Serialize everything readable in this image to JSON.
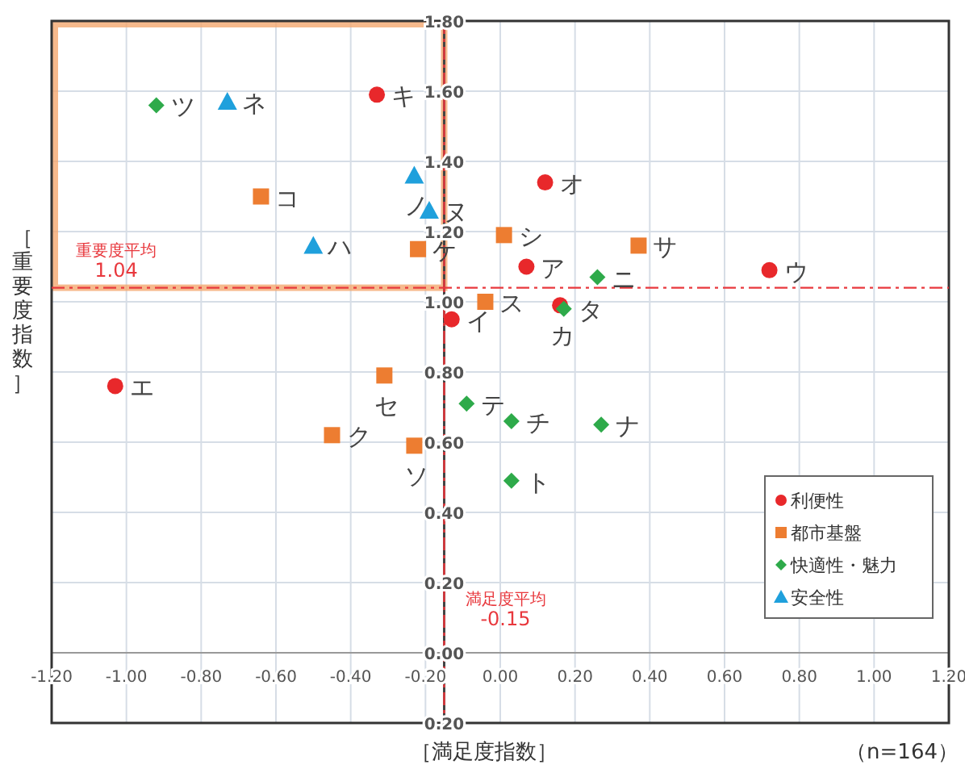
{
  "chart_data": {
    "type": "scatter",
    "xlabel": "［満足度指数］",
    "ylabel": "［重要度指数］",
    "annotations": [
      "（n=164）"
    ],
    "xlim": [
      -1.2,
      1.2
    ],
    "ylim": [
      -0.2,
      1.8
    ],
    "xticks": [
      {
        "value": -1.2,
        "label": "-1.20"
      },
      {
        "value": -1.0,
        "label": "-1.00"
      },
      {
        "value": -0.8,
        "label": "-0.80"
      },
      {
        "value": -0.6,
        "label": "-0.60"
      },
      {
        "value": -0.4,
        "label": "-0.40"
      },
      {
        "value": -0.2,
        "label": "-0.20"
      },
      {
        "value": 0,
        "label": "0.00"
      },
      {
        "value": 0.2,
        "label": "0.20"
      },
      {
        "value": 0.4,
        "label": "0.40"
      },
      {
        "value": 0.6,
        "label": "0.60"
      },
      {
        "value": 0.8,
        "label": "0.80"
      },
      {
        "value": 1.0,
        "label": "1.00"
      },
      {
        "value": 1.2,
        "label": "1.20"
      }
    ],
    "yticks": [
      {
        "value": -0.2,
        "label": "0.20"
      },
      {
        "value": 0,
        "label": "0.00"
      },
      {
        "value": 0.2,
        "label": "0.20"
      },
      {
        "value": 0.4,
        "label": "0.40"
      },
      {
        "value": 0.6,
        "label": "0.60"
      },
      {
        "value": 0.8,
        "label": "0.80"
      },
      {
        "value": 1.0,
        "label": "1.00"
      },
      {
        "value": 1.2,
        "label": "1.20"
      },
      {
        "value": 1.4,
        "label": "1.40"
      },
      {
        "value": 1.6,
        "label": "1.60"
      },
      {
        "value": 1.8,
        "label": "1.80"
      }
    ],
    "grid": true,
    "legend": "bottom right",
    "ref_lines": [
      {
        "axis": "y",
        "value": 1.04,
        "label": "重要度平均 1.04",
        "color": "#e8383d",
        "line_style": "dashed"
      },
      {
        "axis": "x",
        "value": -0.15,
        "label": "満足度平均 -0.15",
        "color": "#e8383d",
        "line_style": "dashed"
      }
    ],
    "series": [
      {
        "name": "利便性",
        "color": "#e8282b",
        "marker": "circle",
        "x": [
          0.07,
          -0.13,
          0.72,
          -1.03,
          0.12,
          0.16,
          -0.33
        ],
        "values": [
          1.1,
          0.95,
          1.09,
          0.76,
          1.34,
          0.99,
          1.59
        ],
        "value_labels": [
          "ア",
          "イ",
          "ウ",
          "エ",
          "オ",
          "カ",
          "キ"
        ]
      },
      {
        "name": "都市基盤",
        "color": "#ed7d31",
        "marker": "square",
        "x": [
          -0.45,
          -0.22,
          -0.64,
          0.37,
          0.01,
          -0.04,
          -0.31,
          -0.23
        ],
        "values": [
          0.62,
          1.15,
          1.3,
          1.16,
          1.19,
          1.0,
          0.79,
          0.59
        ],
        "value_labels": [
          "ク",
          "ケ",
          "コ",
          "サ",
          "シ",
          "ス",
          "セ",
          "ソ"
        ]
      },
      {
        "name": "快適性・魅力",
        "color": "#2eaa4a",
        "marker": "diamond",
        "x": [
          0.17,
          0.03,
          -0.92,
          -0.09,
          0.03,
          0.27,
          0.26
        ],
        "values": [
          0.98,
          0.66,
          1.56,
          0.71,
          0.49,
          0.65,
          1.07
        ],
        "value_labels": [
          "タ",
          "チ",
          "ツ",
          "テ",
          "ト",
          "ナ",
          "ニ"
        ]
      },
      {
        "name": "安全性",
        "color": "#1fa0dc",
        "marker": "triangle",
        "x": [
          -0.19,
          -0.73,
          -0.23,
          -0.5
        ],
        "values": [
          1.26,
          1.57,
          1.36,
          1.16
        ],
        "value_labels": [
          "ヌ",
          "ネ",
          "ノ",
          "ハ"
        ]
      }
    ]
  }
}
